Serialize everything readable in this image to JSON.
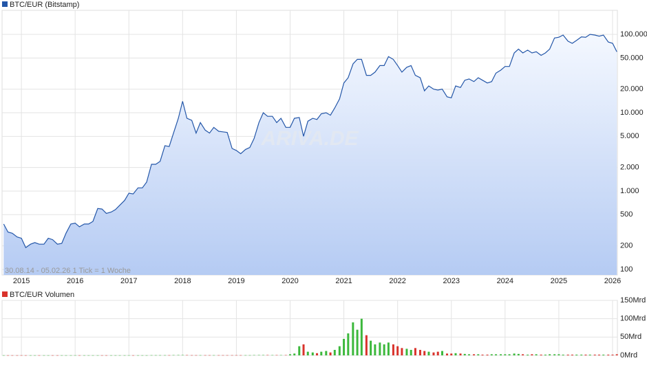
{
  "chart_data": [
    {
      "type": "area",
      "note": "30.08.14 - 05.02.26   1 Tick = 1 Woche",
      "watermark": "ARIVA.DE",
      "log_scale": true,
      "grid": true,
      "x": [
        2014.67,
        2014.75,
        2014.83,
        2014.92,
        2015.0,
        2015.08,
        2015.17,
        2015.25,
        2015.33,
        2015.42,
        2015.5,
        2015.58,
        2015.67,
        2015.75,
        2015.83,
        2015.92,
        2016.0,
        2016.08,
        2016.17,
        2016.25,
        2016.33,
        2016.42,
        2016.5,
        2016.58,
        2016.67,
        2016.75,
        2016.83,
        2016.92,
        2017.0,
        2017.08,
        2017.17,
        2017.25,
        2017.33,
        2017.42,
        2017.5,
        2017.58,
        2017.67,
        2017.75,
        2017.83,
        2017.92,
        2018.0,
        2018.08,
        2018.17,
        2018.25,
        2018.33,
        2018.42,
        2018.5,
        2018.58,
        2018.67,
        2018.75,
        2018.83,
        2018.92,
        2019.0,
        2019.08,
        2019.17,
        2019.25,
        2019.33,
        2019.42,
        2019.5,
        2019.58,
        2019.67,
        2019.75,
        2019.83,
        2019.92,
        2020.0,
        2020.08,
        2020.17,
        2020.25,
        2020.33,
        2020.42,
        2020.5,
        2020.58,
        2020.67,
        2020.75,
        2020.83,
        2020.92,
        2021.0,
        2021.08,
        2021.17,
        2021.25,
        2021.33,
        2021.42,
        2021.5,
        2021.58,
        2021.67,
        2021.75,
        2021.83,
        2021.92,
        2022.0,
        2022.08,
        2022.17,
        2022.25,
        2022.33,
        2022.42,
        2022.5,
        2022.58,
        2022.67,
        2022.75,
        2022.83,
        2022.92,
        2023.0,
        2023.08,
        2023.17,
        2023.25,
        2023.33,
        2023.42,
        2023.5,
        2023.58,
        2023.67,
        2023.75,
        2023.83,
        2023.92,
        2024.0,
        2024.08,
        2024.17,
        2024.25,
        2024.33,
        2024.42,
        2024.5,
        2024.58,
        2024.67,
        2024.75,
        2024.83,
        2024.92,
        2025.0,
        2025.08,
        2025.17,
        2025.25,
        2025.33,
        2025.42,
        2025.5,
        2025.58,
        2025.67,
        2025.75,
        2025.83,
        2025.92,
        2026.0,
        2026.08
      ],
      "series": [
        {
          "name": "BTC/EUR (Bitstamp)",
          "color": "#2356a8",
          "values": [
            380,
            300,
            290,
            260,
            250,
            190,
            210,
            220,
            210,
            210,
            250,
            240,
            210,
            215,
            290,
            380,
            390,
            350,
            380,
            380,
            410,
            600,
            590,
            520,
            540,
            580,
            660,
            760,
            940,
            920,
            1100,
            1100,
            1300,
            2200,
            2200,
            2400,
            3800,
            3700,
            5500,
            8500,
            14000,
            8500,
            8000,
            5500,
            7500,
            6000,
            5500,
            6500,
            5800,
            5700,
            5600,
            3500,
            3300,
            3000,
            3400,
            3600,
            4700,
            7500,
            10000,
            9000,
            9000,
            7500,
            8500,
            6500,
            6500,
            8500,
            8700,
            5000,
            7800,
            8500,
            8200,
            9700,
            10000,
            9300,
            11500,
            15000,
            24000,
            28000,
            42000,
            48000,
            48000,
            30000,
            30000,
            33000,
            40000,
            40000,
            52000,
            48000,
            40000,
            33000,
            38000,
            40000,
            30000,
            28000,
            19000,
            22000,
            20000,
            19500,
            20000,
            16000,
            15500,
            22000,
            21000,
            26000,
            27000,
            25000,
            28000,
            26000,
            24000,
            25000,
            32000,
            35000,
            39000,
            39000,
            58000,
            65000,
            58000,
            63000,
            58000,
            60000,
            54000,
            58000,
            65000,
            90000,
            92000,
            98000,
            82000,
            77000,
            84000,
            93000,
            92000,
            100000,
            98000,
            95000,
            98000,
            80000,
            77000,
            60000
          ]
        }
      ],
      "xlim": [
        2014.64,
        2026.09
      ],
      "xticks": [
        2015,
        2016,
        2017,
        2018,
        2019,
        2020,
        2021,
        2022,
        2023,
        2024,
        2025,
        2026
      ],
      "ylim": [
        85,
        203000
      ],
      "yticks": [
        100,
        200,
        500,
        {
          "value": 1000,
          "label": "1.000"
        },
        {
          "value": 2000,
          "label": "2.000"
        },
        {
          "value": 5000,
          "label": "5.000"
        },
        {
          "value": 10000,
          "label": "10.000"
        },
        {
          "value": 20000,
          "label": "20.000"
        },
        {
          "value": 50000,
          "label": "50.000"
        },
        {
          "value": 100000,
          "label": "100.000"
        }
      ]
    },
    {
      "type": "bar",
      "grid": true,
      "up_color": "#3cb83c",
      "down_color": "#d9332c",
      "series": [
        {
          "name": "BTC/EUR Volumen",
          "color": "#d9332c",
          "values": [
            0.3,
            0.3,
            0.3,
            0.3,
            0.3,
            0.3,
            0.3,
            0.3,
            0.3,
            0.3,
            0.3,
            0.3,
            0.3,
            0.3,
            0.3,
            0.3,
            0.3,
            0.3,
            0.3,
            0.3,
            0.3,
            0.3,
            0.3,
            0.3,
            0.3,
            0.3,
            0.3,
            0.3,
            0.3,
            0.3,
            0.3,
            0.3,
            0.3,
            0.5,
            0.5,
            0.5,
            0.5,
            0.5,
            0.8,
            1,
            1,
            0.8,
            0.5,
            0.5,
            0.5,
            0.5,
            0.5,
            0.5,
            0.5,
            0.5,
            0.5,
            0.5,
            0.5,
            0.5,
            0.5,
            0.5,
            0.8,
            1,
            1,
            1,
            0.8,
            0.8,
            0.8,
            0.8,
            3,
            5,
            25,
            30,
            10,
            8,
            6,
            10,
            12,
            8,
            15,
            25,
            45,
            60,
            90,
            70,
            100,
            55,
            40,
            30,
            35,
            30,
            35,
            30,
            25,
            20,
            18,
            15,
            20,
            15,
            12,
            10,
            8,
            10,
            12,
            5,
            5,
            6,
            5,
            4,
            3,
            3,
            3,
            2,
            2,
            3,
            3,
            3,
            3,
            3,
            5,
            4,
            3,
            2,
            3,
            3,
            2,
            2,
            3,
            3,
            3,
            2,
            2,
            2,
            2,
            2,
            2,
            2,
            2,
            2,
            2,
            2,
            2,
            3
          ]
        }
      ],
      "ylim": [
        0,
        150
      ],
      "yticks": [
        {
          "value": 0,
          "label": "0Mrd"
        },
        {
          "value": 50,
          "label": "50Mrd"
        },
        {
          "value": 100,
          "label": "100Mrd"
        },
        {
          "value": 150,
          "label": "150Mrd"
        }
      ]
    }
  ]
}
